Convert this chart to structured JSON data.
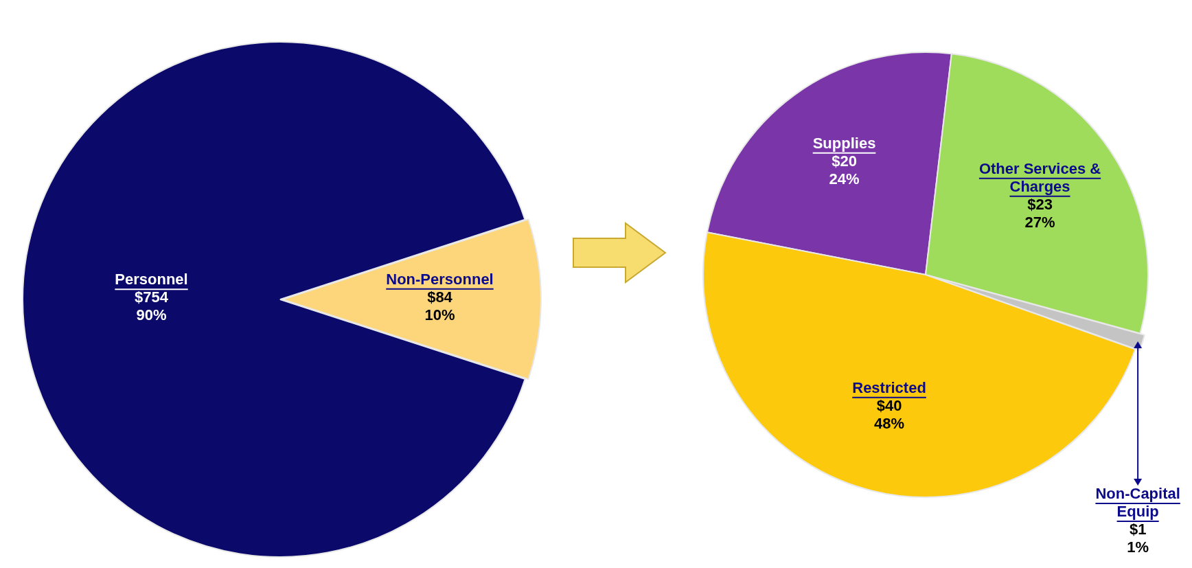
{
  "chart_data": [
    {
      "type": "pie",
      "categories": [
        "Personnel",
        "Non-Personnel"
      ],
      "values": [
        754,
        84
      ],
      "colors": [
        "#0b0a6b",
        "#fdd67c"
      ],
      "value_labels": [
        "$754\n90%",
        "$84\n10%"
      ]
    },
    {
      "type": "pie",
      "categories": [
        "Supplies",
        "Other Services & Charges",
        "Non-Capital Equip",
        "Restricted"
      ],
      "values": [
        20,
        23,
        1,
        40
      ],
      "colors": [
        "#7a36a8",
        "#a0dc5c",
        "#c4c4c4",
        "#fdc90c"
      ],
      "value_labels": [
        "$20\n24%",
        "$23\n27%",
        "$1\n1%",
        "$40\n48%"
      ]
    }
  ]
}
